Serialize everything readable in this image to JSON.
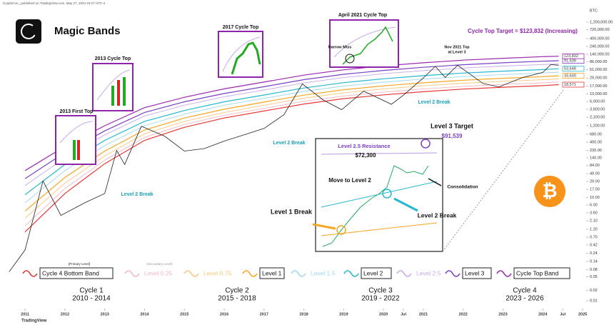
{
  "header": {
    "byline": "CryptoCon_ published on TradingView.com, May 27, 2024 10:27 UTC-4",
    "title": "Magic Bands",
    "currency": "BTC",
    "footer": "TradingView",
    "bitcoin_symbol": "₿"
  },
  "chart_data": {
    "type": "line",
    "log_scale": true,
    "grid": false,
    "xlim": [
      2010.37,
      2025.07
    ],
    "ylim": [
      0.006,
      3600000
    ],
    "xticks": [
      2011,
      2012,
      2013,
      2014,
      2015,
      2016,
      2017,
      2018,
      2019,
      2020,
      {
        "value": 2020.5,
        "label": "Jul"
      },
      2021,
      2022,
      2023,
      2024,
      {
        "value": 2024.5,
        "label": "Jul"
      },
      2025
    ],
    "yticks": [
      {
        "value": 1200000,
        "label": "1,200,000.00"
      },
      {
        "value": 720000,
        "label": "720,000.00"
      },
      {
        "value": 400000,
        "label": "400,000.00"
      },
      {
        "value": 240000,
        "label": "240,000.00"
      },
      {
        "value": 140000,
        "label": "140,000.00"
      },
      {
        "value": 86000,
        "label": "86,000.00"
      },
      {
        "value": 51000,
        "label": "51,000.00"
      },
      {
        "value": 29000,
        "label": "29,000.00"
      },
      {
        "value": 17000,
        "label": "17,000.00"
      },
      {
        "value": 10000,
        "label": "10,000.00"
      },
      {
        "value": 6000,
        "label": "6,000.00"
      },
      {
        "value": 3600,
        "label": "3,600.00"
      },
      {
        "value": 2100,
        "label": "2,100.00"
      },
      {
        "value": 1200,
        "label": "1,200.00"
      },
      {
        "value": 680,
        "label": "680.00"
      },
      {
        "value": 400,
        "label": "400.00"
      },
      {
        "value": 230,
        "label": "230.00"
      },
      {
        "value": 140,
        "label": "140.00"
      },
      {
        "value": 84,
        "label": "84.00"
      },
      {
        "value": 49,
        "label": "49.00"
      },
      {
        "value": 29,
        "label": "29.00"
      },
      {
        "value": 17,
        "label": "17.00"
      },
      {
        "value": 10,
        "label": "10.00"
      },
      {
        "value": 6,
        "label": "6.00"
      },
      {
        "value": 3.6,
        "label": "3.60"
      },
      {
        "value": 2.1,
        "label": "2.10"
      },
      {
        "value": 1.2,
        "label": "1.20"
      },
      {
        "value": 0.7,
        "label": "0.70"
      },
      {
        "value": 0.42,
        "label": "0.42"
      },
      {
        "value": 0.24,
        "label": "0.24"
      },
      {
        "value": 0.14,
        "label": "0.14"
      },
      {
        "value": 0.08,
        "label": "0.08"
      },
      {
        "value": 0.05,
        "label": "0.05"
      },
      {
        "value": 0.02,
        "label": "0.02"
      },
      {
        "value": 0.01,
        "label": "0.01"
      }
    ],
    "x": [
      2011,
      2012,
      2013,
      2014,
      2015,
      2016,
      2017,
      2018,
      2019,
      2020,
      2021,
      2022,
      2023,
      2024,
      2024.4
    ],
    "series": [
      {
        "name": "Cycle 4 Bottom Band",
        "color": "#e53935",
        "primary": true,
        "values": [
          1,
          13,
          95,
          450,
          1080,
          2000,
          3200,
          5100,
          7300,
          9400,
          11600,
          13800,
          15600,
          17400,
          18571
        ],
        "value_labels": [
          null,
          null,
          null,
          null,
          null,
          null,
          null,
          null,
          null,
          null,
          null,
          null,
          null,
          null,
          "18,571"
        ]
      },
      {
        "name": "Level 0.25",
        "color": "#f4b6c2",
        "primary": false,
        "values": [
          1.5,
          18,
          120,
          550,
          1300,
          2400,
          3800,
          6100,
          8700,
          11300,
          13900,
          16500,
          18800,
          20900,
          22100
        ]
      },
      {
        "name": "Level 0.75",
        "color": "#f8c77a",
        "primary": false,
        "values": [
          2.5,
          26,
          160,
          700,
          1600,
          2900,
          4700,
          7500,
          10800,
          14000,
          17200,
          20400,
          23200,
          25800,
          27300
        ]
      },
      {
        "name": "Level 1",
        "color": "#f5a623",
        "primary": true,
        "values": [
          4,
          38,
          220,
          900,
          2000,
          3600,
          5800,
          9200,
          13200,
          17100,
          21000,
          25000,
          28400,
          31600,
          33600
        ],
        "value_labels": [
          null,
          null,
          null,
          null,
          null,
          null,
          null,
          null,
          null,
          null,
          null,
          null,
          null,
          null,
          "33,600"
        ]
      },
      {
        "name": "Level 1.5",
        "color": "#9fd8e8",
        "primary": false,
        "values": [
          7,
          60,
          320,
          1200,
          2600,
          4700,
          7400,
          11800,
          16900,
          21900,
          26900,
          32000,
          36400,
          40400,
          42700
        ]
      },
      {
        "name": "Level 2",
        "color": "#26b8d0",
        "primary": true,
        "values": [
          12,
          90,
          450,
          1600,
          3300,
          5900,
          9300,
          14800,
          21200,
          27500,
          33800,
          40200,
          45700,
          50800,
          53648
        ],
        "value_labels": [
          null,
          null,
          null,
          null,
          null,
          null,
          null,
          null,
          null,
          null,
          null,
          null,
          null,
          null,
          "53,648"
        ]
      },
      {
        "name": "Level 2.5",
        "color": "#c9a8e8",
        "primary": false,
        "values": [
          22,
          140,
          650,
          2300,
          4700,
          8300,
          13000,
          20800,
          29700,
          38500,
          47400,
          56300,
          64000,
          71100,
          73500
        ]
      },
      {
        "name": "Level 3",
        "color": "#7b3fc4",
        "primary": true,
        "values": [
          35,
          200,
          850,
          2900,
          5900,
          10300,
          16200,
          25900,
          37000,
          48000,
          59000,
          70300,
          80000,
          88800,
          91539
        ],
        "value_labels": [
          null,
          null,
          null,
          null,
          null,
          null,
          null,
          null,
          null,
          null,
          null,
          null,
          null,
          null,
          "91,539"
        ]
      },
      {
        "name": "Cycle Top Band",
        "color": "#9c27b0",
        "primary": true,
        "values": [
          60,
          300,
          1200,
          4000,
          8000,
          14000,
          22000,
          35000,
          50000,
          65000,
          80000,
          95000,
          108000,
          120000,
          123832
        ],
        "value_labels": [
          null,
          null,
          null,
          null,
          null,
          null,
          null,
          null,
          null,
          null,
          null,
          null,
          null,
          null,
          "123,832"
        ]
      }
    ],
    "price": {
      "color": "#222",
      "x": [
        2010.6,
        2011.0,
        2011.45,
        2011.9,
        2012.5,
        2013.0,
        2013.3,
        2013.5,
        2013.92,
        2014.5,
        2015.0,
        2015.5,
        2016.0,
        2016.5,
        2017.0,
        2017.5,
        2017.96,
        2018.5,
        2018.95,
        2019.5,
        2020.2,
        2020.5,
        2021.0,
        2021.3,
        2021.55,
        2021.86,
        2022.5,
        2022.9,
        2023.5,
        2024.0,
        2024.2,
        2024.4
      ],
      "values": [
        0.07,
        0.3,
        30,
        3,
        7,
        13,
        230,
        90,
        1150,
        600,
        220,
        260,
        430,
        650,
        1000,
        2500,
        19500,
        6500,
        3500,
        12000,
        5000,
        9200,
        29000,
        63000,
        30000,
        68000,
        20000,
        16000,
        30000,
        42000,
        71000,
        68000
      ]
    },
    "legend_notes": [
      "[Primary Level]",
      "(Secondary Level)"
    ],
    "cycles": [
      {
        "name": "Cycle 1",
        "years": "2010 - 2014"
      },
      {
        "name": "Cycle 2",
        "years": "2015 - 2018"
      },
      {
        "name": "Cycle 3",
        "years": "2019 - 2022"
      },
      {
        "name": "Cycle 4",
        "years": "2023 - 2026"
      }
    ],
    "annotations": [
      "2013 First Top",
      "2013 Cycle Top",
      "2017 Cycle Top",
      "April 2021 Cycle Top",
      "Narrow Miss",
      "Nov 2021 Top",
      "at Level 3",
      "Cycle Top Target = $123,832 (Increasing)",
      "Level 2 Break",
      "Level 2 Break",
      "Level 2 Break",
      "Level 3 Target",
      "$91,539",
      "Level 2.5 Resistance",
      "$72,300",
      "Move to  Level 2",
      "Consolidation",
      "Level 1 Break",
      "Level 2 Break"
    ]
  }
}
